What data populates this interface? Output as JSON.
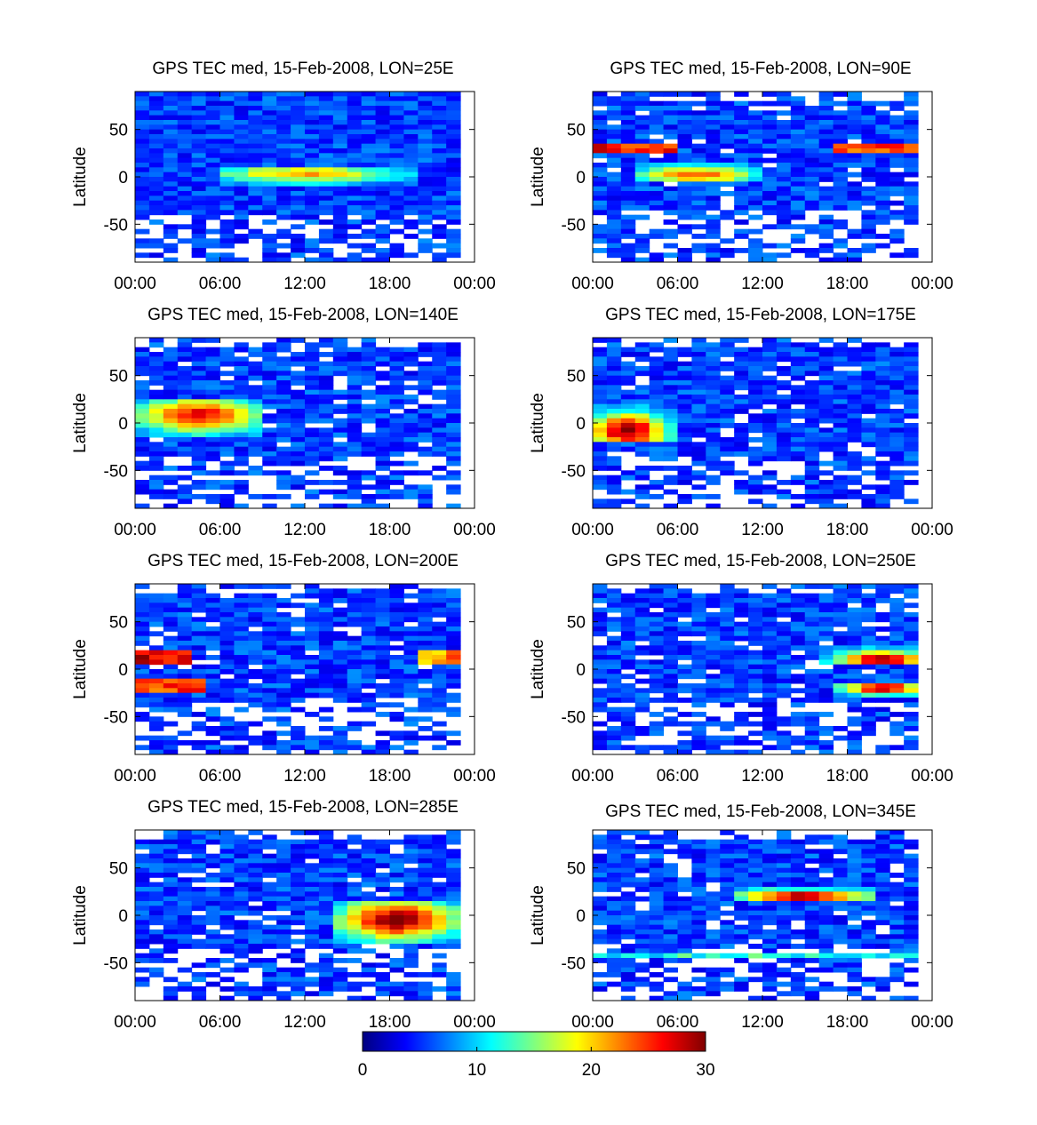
{
  "chart_data": {
    "type": "heatmap",
    "colorbar": {
      "range": [
        0,
        30
      ],
      "ticks": [
        "0",
        "10",
        "20",
        "30"
      ],
      "colormap": "jet"
    },
    "panels": [
      {
        "title": "GPS TEC med, 15-Feb-2008, LON=25E",
        "ylabel": "Latitude",
        "xticks": [
          "00:00",
          "06:00",
          "12:00",
          "18:00",
          "00:00"
        ],
        "yticks": [
          "50",
          "0",
          "-50"
        ],
        "xlim_hours": [
          0,
          24
        ],
        "ylim": [
          -90,
          90
        ],
        "features": [
          {
            "lat": [
              -10,
              10
            ],
            "hours": [
              6.5,
              20
            ],
            "peak": 22,
            "center_hours": 12,
            "center_lat": 3
          },
          {
            "lat": [
              -40,
              90
            ],
            "hours": [
              0,
              23
            ],
            "level": 4
          }
        ]
      },
      {
        "title": "GPS TEC med, 15-Feb-2008, LON=90E",
        "ylabel": "Latitude",
        "xticks": [
          "00:00",
          "06:00",
          "12:00",
          "18:00",
          "00:00"
        ],
        "yticks": [
          "50",
          "0",
          "-50"
        ],
        "xlim_hours": [
          0,
          24
        ],
        "ylim": [
          -90,
          90
        ],
        "features": [
          {
            "lat": [
              -5,
              15
            ],
            "hours": [
              3,
              12
            ],
            "peak": 24,
            "center_hours": 7.5,
            "center_lat": 2
          },
          {
            "lat": [
              25,
              35
            ],
            "hours": [
              0,
              6
            ],
            "level": 29
          },
          {
            "lat": [
              25,
              35
            ],
            "hours": [
              17,
              23
            ],
            "level": 27
          }
        ]
      },
      {
        "title": "GPS TEC med, 15-Feb-2008, LON=140E",
        "ylabel": "Latitude",
        "xticks": [
          "00:00",
          "06:00",
          "12:00",
          "18:00",
          "00:00"
        ],
        "yticks": [
          "50",
          "0",
          "-50"
        ],
        "xlim_hours": [
          0,
          24
        ],
        "ylim": [
          -90,
          90
        ],
        "features": [
          {
            "lat": [
              -15,
              25
            ],
            "hours": [
              0,
              9
            ],
            "peak": 27,
            "center_hours": 4.5,
            "center_lat": 8
          }
        ]
      },
      {
        "title": "GPS TEC med, 15-Feb-2008, LON=175E",
        "ylabel": "Latitude",
        "xticks": [
          "00:00",
          "06:00",
          "12:00",
          "18:00",
          "00:00"
        ],
        "yticks": [
          "50",
          "0",
          "-50"
        ],
        "xlim_hours": [
          0,
          24
        ],
        "ylim": [
          -90,
          90
        ],
        "features": [
          {
            "lat": [
              -20,
              20
            ],
            "hours": [
              0,
              6
            ],
            "peak": 30,
            "center_hours": 2.5,
            "center_lat": -8
          }
        ]
      },
      {
        "title": "GPS TEC med, 15-Feb-2008, LON=200E",
        "ylabel": "Latitude",
        "xticks": [
          "00:00",
          "06:00",
          "12:00",
          "18:00",
          "00:00"
        ],
        "yticks": [
          "50",
          "0",
          "-50"
        ],
        "xlim_hours": [
          0,
          24
        ],
        "ylim": [
          -90,
          90
        ],
        "features": [
          {
            "lat": [
              5,
              20
            ],
            "hours": [
              0,
              3.5
            ],
            "level": 30
          },
          {
            "lat": [
              -25,
              -10
            ],
            "hours": [
              0,
              5
            ],
            "level": 28
          },
          {
            "lat": [
              5,
              20
            ],
            "hours": [
              20,
              23
            ],
            "level": 25
          }
        ]
      },
      {
        "title": "GPS TEC med, 15-Feb-2008, LON=250E",
        "ylabel": "Latitude",
        "xticks": [
          "00:00",
          "06:00",
          "12:00",
          "18:00",
          "00:00"
        ],
        "yticks": [
          "50",
          "0",
          "-50"
        ],
        "xlim_hours": [
          0,
          24
        ],
        "ylim": [
          -90,
          90
        ],
        "features": [
          {
            "lat": [
              5,
              25
            ],
            "hours": [
              16,
              23
            ],
            "peak": 30,
            "center_hours": 20.5,
            "center_lat": 10
          },
          {
            "lat": [
              -30,
              -15
            ],
            "hours": [
              17,
              23
            ],
            "peak": 30,
            "center_hours": 20.5,
            "center_lat": -20
          }
        ]
      },
      {
        "title": "GPS TEC med, 15-Feb-2008, LON=285E",
        "ylabel": "Latitude",
        "xticks": [
          "00:00",
          "06:00",
          "12:00",
          "18:00",
          "00:00"
        ],
        "yticks": [
          "50",
          "0",
          "-50"
        ],
        "xlim_hours": [
          0,
          24
        ],
        "ylim": [
          -90,
          90
        ],
        "features": [
          {
            "lat": [
              -30,
              15
            ],
            "hours": [
              14,
              23
            ],
            "peak": 30,
            "center_hours": 18.5,
            "center_lat": -5
          }
        ]
      },
      {
        "title": "GPS TEC med, 15-Feb-2008, LON=345E",
        "ylabel": "Latitude",
        "xticks": [
          "00:00",
          "06:00",
          "12:00",
          "18:00",
          "00:00"
        ],
        "yticks": [
          "50",
          "0",
          "-50"
        ],
        "xlim_hours": [
          0,
          24
        ],
        "ylim": [
          -90,
          90
        ],
        "features": [
          {
            "lat": [
              15,
              30
            ],
            "hours": [
              10,
              20
            ],
            "peak": 30,
            "center_hours": 15,
            "center_lat": 20
          },
          {
            "lat": [
              -45,
              -38
            ],
            "hours": [
              0,
              23
            ],
            "level": 15
          }
        ]
      }
    ]
  }
}
